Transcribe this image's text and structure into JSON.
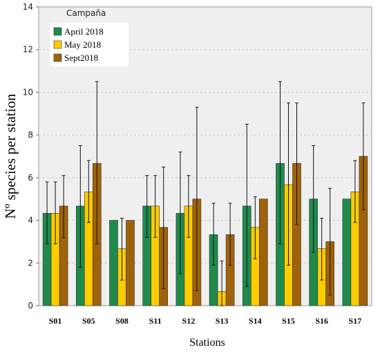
{
  "chart_data": {
    "type": "bar",
    "categories": [
      "S01",
      "S05",
      "S08",
      "S11",
      "S12",
      "S13",
      "S14",
      "S15",
      "S16",
      "S17"
    ],
    "series": [
      {
        "name": "April 2018",
        "color": "#1f8a4c",
        "values": [
          4.33,
          4.67,
          4.0,
          4.67,
          4.33,
          3.33,
          4.67,
          6.67,
          5.0,
          5.0
        ],
        "error_low": [
          2.9,
          1.8,
          4.0,
          3.2,
          1.5,
          1.9,
          0.9,
          2.9,
          2.5,
          5.0
        ],
        "error_high": [
          5.8,
          7.5,
          4.0,
          6.1,
          7.2,
          4.8,
          8.5,
          10.5,
          7.5,
          5.0
        ]
      },
      {
        "name": "May 2018",
        "color": "#ffcc00",
        "values": [
          4.33,
          5.33,
          2.67,
          4.67,
          4.67,
          0.67,
          3.67,
          5.67,
          2.67,
          5.33
        ],
        "error_low": [
          2.9,
          3.9,
          1.2,
          3.2,
          3.2,
          0.0,
          2.2,
          1.9,
          1.2,
          3.9
        ],
        "error_high": [
          5.8,
          6.8,
          4.1,
          6.1,
          6.1,
          2.1,
          5.1,
          9.5,
          4.1,
          6.8
        ]
      },
      {
        "name": "Sept2018",
        "color": "#a0620a",
        "values": [
          4.67,
          6.67,
          4.0,
          3.67,
          5.0,
          3.33,
          5.0,
          6.67,
          3.0,
          7.0
        ],
        "error_low": [
          3.2,
          2.9,
          4.0,
          0.8,
          0.7,
          1.9,
          5.0,
          3.8,
          0.5,
          4.5
        ],
        "error_high": [
          6.1,
          10.5,
          4.0,
          6.5,
          9.3,
          4.8,
          5.0,
          9.5,
          5.5,
          9.5
        ]
      }
    ],
    "ylim": [
      0,
      14
    ],
    "yticks": [
      0,
      2,
      4,
      6,
      8,
      10,
      12,
      14
    ],
    "xlabel": "Stations",
    "ylabel": "Nº species per station",
    "legend_title": "Campaña",
    "legend_position": "top-left",
    "plot_background": "#efefef",
    "grid": "horizontal dashed"
  }
}
